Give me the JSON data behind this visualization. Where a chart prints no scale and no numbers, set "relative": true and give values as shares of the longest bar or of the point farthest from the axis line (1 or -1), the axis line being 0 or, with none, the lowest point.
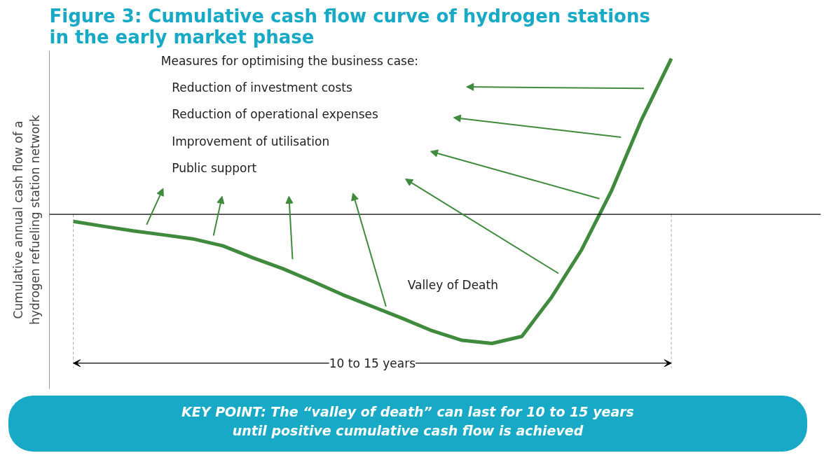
{
  "chart_data": {
    "type": "line",
    "title": "Figure 3: Cumulative cash flow curve of hydrogen stations in the early market phase",
    "ylabel": "Cumulative annual cash flow of a hydrogen refueling station network",
    "relative": true,
    "categories": [
      null,
      null,
      null,
      null,
      null,
      null,
      null,
      null,
      null,
      null,
      null,
      null,
      null,
      null,
      null,
      null,
      null,
      null,
      null,
      null,
      null
    ],
    "series": [
      {
        "color": "#3f8a3c",
        "values": [
          -0.045,
          -0.076,
          -0.106,
          -0.131,
          -0.157,
          -0.202,
          -0.278,
          -0.348,
          -0.429,
          -0.515,
          -0.591,
          -0.667,
          -0.747,
          -0.808,
          -0.828,
          -0.783,
          -0.53,
          -0.227,
          0.152,
          0.606,
          1
        ]
      }
    ],
    "annotations": [
      "Measures for optimising the business case:",
      "Reduction of investment costs",
      "Reduction of operational expenses",
      "Improvement of utilisation",
      "Public support",
      "Valley of Death",
      "10 to 15 years",
      "KEY POINT: The “valley of death” can last for 10 to 15 years",
      "until positive cumulative cash flow is achieved"
    ],
    "grid": false,
    "marker": "none",
    "line_style": "solid"
  }
}
